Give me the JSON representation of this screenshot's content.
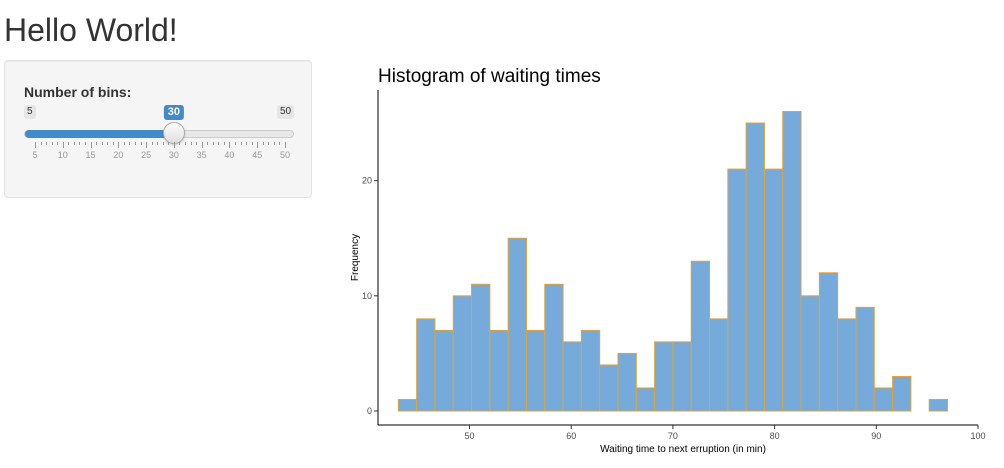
{
  "app": {
    "title": "Hello World!"
  },
  "sidebar": {
    "slider": {
      "label": "Number of bins:",
      "min": 5,
      "max": 50,
      "value": 30,
      "min_label": "5",
      "max_label": "50",
      "value_label": "30",
      "tick_labels": [
        "5",
        "10",
        "15",
        "20",
        "25",
        "30",
        "35",
        "40",
        "45",
        "50"
      ]
    }
  },
  "colors": {
    "accent": "#428bca",
    "bar_fill": "#75aadb",
    "bar_border": "#e0a33a"
  },
  "chart_data": {
    "type": "bar",
    "title": "Histogram of waiting times",
    "xlabel": "Waiting time to next erruption (in min)",
    "ylabel": "Frequency",
    "xlim": [
      41,
      100
    ],
    "ylim": [
      0,
      27
    ],
    "xticks": [
      50,
      60,
      70,
      80,
      90,
      100
    ],
    "yticks": [
      0,
      10,
      20
    ],
    "bin_edges": [
      43.0,
      44.8,
      46.6,
      48.4,
      50.2,
      52.0,
      53.8,
      55.6,
      57.4,
      59.2,
      61.0,
      62.8,
      64.6,
      66.4,
      68.2,
      70.0,
      71.8,
      73.6,
      75.4,
      77.2,
      79.0,
      80.8,
      82.6,
      84.4,
      86.2,
      88.0,
      89.8,
      91.6,
      93.4,
      95.2,
      97.0
    ],
    "values": [
      1,
      8,
      7,
      10,
      11,
      7,
      15,
      7,
      11,
      6,
      7,
      4,
      5,
      2,
      6,
      6,
      13,
      8,
      21,
      25,
      21,
      26,
      10,
      12,
      8,
      9,
      2,
      3,
      0,
      1
    ],
    "grid": false
  }
}
